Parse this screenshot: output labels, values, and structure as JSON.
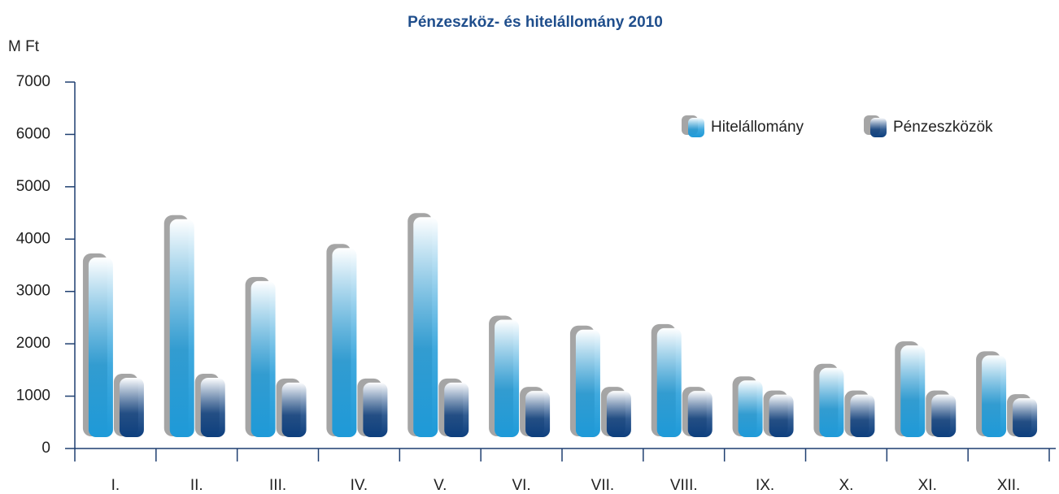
{
  "chart_data": {
    "type": "bar",
    "title": "Pénzeszköz- és hitelállomány 2010",
    "y_label": "M  Ft",
    "categories": [
      "I.",
      "II.",
      "III.",
      "IV.",
      "V.",
      "VI.",
      "VII.",
      "VIII.",
      "IX.",
      "X.",
      "XI.",
      "XII."
    ],
    "series": [
      {
        "name": "Hitelállomány",
        "color": "#1e9ad8",
        "values": [
          3650,
          4380,
          3200,
          3830,
          4420,
          2460,
          2270,
          2300,
          1300,
          1540,
          1970,
          1780
        ]
      },
      {
        "name": "Pénzeszközök",
        "color": "#0d3f7e",
        "values": [
          1350,
          1350,
          1260,
          1260,
          1260,
          1100,
          1100,
          1100,
          1030,
          1030,
          1030,
          960
        ]
      }
    ],
    "ylim": [
      0,
      7000
    ],
    "yticks": [
      0,
      1000,
      2000,
      3000,
      4000,
      5000,
      6000,
      7000
    ],
    "legend": "top-right"
  }
}
